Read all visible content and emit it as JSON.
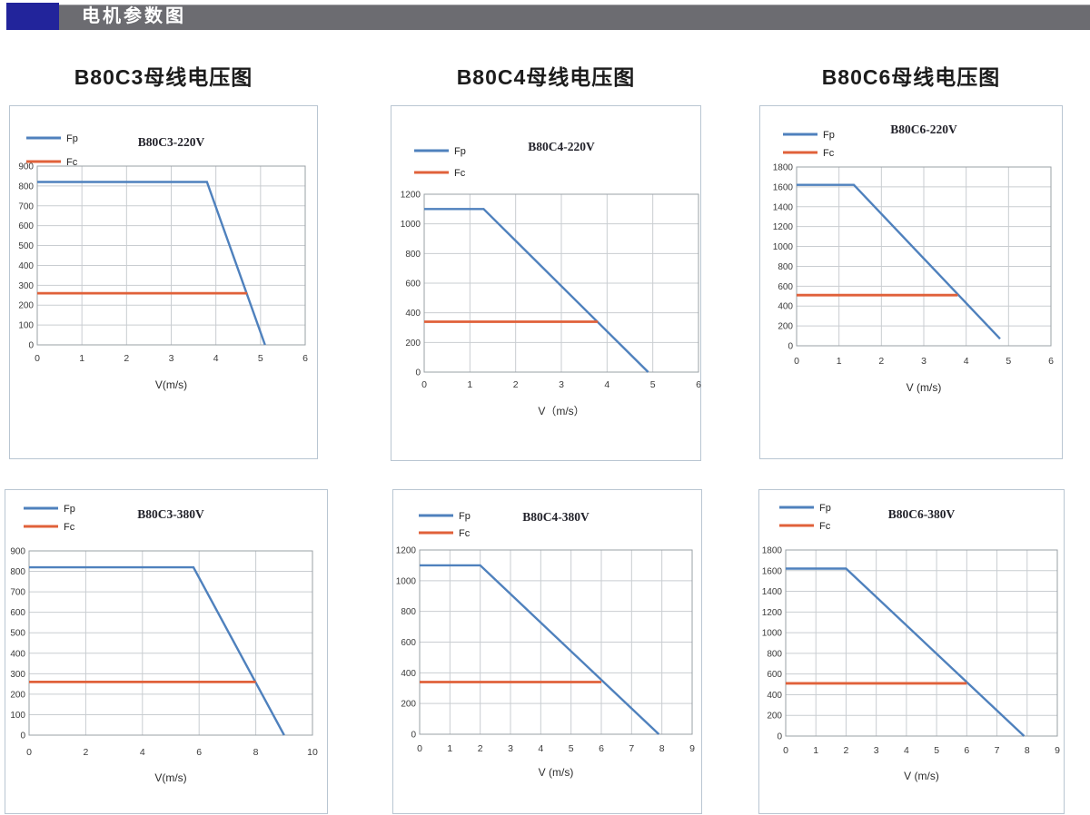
{
  "header": {
    "title": "电机参数图"
  },
  "section_titles": [
    "B80C3母线电压图",
    "B80C4母线电压图",
    "B80C6母线电压图"
  ],
  "colors": {
    "fp": "#4f81bd",
    "fc": "#e0613a",
    "grid": "#c9cdd1",
    "axis": "#9aa0a6",
    "panel_border": "#b9c6d2",
    "header_bar": "#6c6c71",
    "header_accent": "#22249b"
  },
  "chart_data": [
    {
      "type": "line",
      "title": "B80C3-220V",
      "xlabel": "V(m/s)",
      "xlim": [
        0,
        6
      ],
      "ylim": [
        0,
        900
      ],
      "xticks": [
        0,
        1,
        2,
        3,
        4,
        5,
        6
      ],
      "yticks": [
        0,
        100,
        200,
        300,
        400,
        500,
        600,
        700,
        800,
        900
      ],
      "legend": [
        "Fp",
        "Fc"
      ],
      "series": [
        {
          "name": "Fp",
          "color": "#4f81bd",
          "points": [
            [
              0,
              820
            ],
            [
              3.8,
              820
            ],
            [
              5.1,
              0
            ]
          ]
        },
        {
          "name": "Fc",
          "color": "#e0613a",
          "points": [
            [
              0,
              260
            ],
            [
              4.7,
              260
            ]
          ]
        }
      ]
    },
    {
      "type": "line",
      "title": "B80C4-220V",
      "xlabel": "V（m/s）",
      "xlim": [
        0,
        6
      ],
      "ylim": [
        0,
        1200
      ],
      "xticks": [
        0,
        1,
        2,
        3,
        4,
        5,
        6
      ],
      "yticks": [
        0,
        200,
        400,
        600,
        800,
        1000,
        1200
      ],
      "legend": [
        "Fp",
        "Fc"
      ],
      "series": [
        {
          "name": "Fp",
          "color": "#4f81bd",
          "points": [
            [
              0,
              1100
            ],
            [
              1.3,
              1100
            ],
            [
              4.9,
              0
            ]
          ]
        },
        {
          "name": "Fc",
          "color": "#e0613a",
          "points": [
            [
              0,
              340
            ],
            [
              3.8,
              340
            ]
          ]
        }
      ]
    },
    {
      "type": "line",
      "title": "B80C6-220V",
      "xlabel": "V (m/s)",
      "xlim": [
        0,
        6
      ],
      "ylim": [
        0,
        1800
      ],
      "xticks": [
        0,
        1,
        2,
        3,
        4,
        5,
        6
      ],
      "yticks": [
        0,
        200,
        400,
        600,
        800,
        1000,
        1200,
        1400,
        1600,
        1800
      ],
      "legend": [
        "Fp",
        "Fc"
      ],
      "series": [
        {
          "name": "Fp",
          "color": "#4f81bd",
          "points": [
            [
              0,
              1620
            ],
            [
              1.35,
              1620
            ],
            [
              4.8,
              70
            ]
          ]
        },
        {
          "name": "Fc",
          "color": "#e0613a",
          "points": [
            [
              0,
              510
            ],
            [
              3.8,
              510
            ]
          ]
        }
      ]
    },
    {
      "type": "line",
      "title": "B80C3-380V",
      "xlabel": "V(m/s)",
      "xlim": [
        0,
        10
      ],
      "ylim": [
        0,
        900
      ],
      "xticks": [
        0,
        2,
        4,
        6,
        8,
        10
      ],
      "yticks": [
        0,
        100,
        200,
        300,
        400,
        500,
        600,
        700,
        800,
        900
      ],
      "legend": [
        "Fp",
        "Fc"
      ],
      "series": [
        {
          "name": "Fp",
          "color": "#4f81bd",
          "points": [
            [
              0,
              820
            ],
            [
              5.8,
              820
            ],
            [
              9,
              0
            ]
          ]
        },
        {
          "name": "Fc",
          "color": "#e0613a",
          "points": [
            [
              0,
              260
            ],
            [
              8,
              260
            ]
          ]
        }
      ]
    },
    {
      "type": "line",
      "title": "B80C4-380V",
      "xlabel": "V (m/s)",
      "xlim": [
        0,
        9
      ],
      "ylim": [
        0,
        1200
      ],
      "xticks": [
        0,
        1,
        2,
        3,
        4,
        5,
        6,
        7,
        8,
        9
      ],
      "yticks": [
        0,
        200,
        400,
        600,
        800,
        1000,
        1200
      ],
      "legend": [
        "Fp",
        "Fc"
      ],
      "series": [
        {
          "name": "Fp",
          "color": "#4f81bd",
          "points": [
            [
              0,
              1100
            ],
            [
              2,
              1100
            ],
            [
              7.9,
              0
            ]
          ]
        },
        {
          "name": "Fc",
          "color": "#e0613a",
          "points": [
            [
              0,
              340
            ],
            [
              6,
              340
            ]
          ]
        }
      ]
    },
    {
      "type": "line",
      "title": "B80C6-380V",
      "xlabel": "V (m/s)",
      "xlim": [
        0,
        9
      ],
      "ylim": [
        0,
        1800
      ],
      "xticks": [
        0,
        1,
        2,
        3,
        4,
        5,
        6,
        7,
        8,
        9
      ],
      "yticks": [
        0,
        200,
        400,
        600,
        800,
        1000,
        1200,
        1400,
        1600,
        1800
      ],
      "legend": [
        "Fp",
        "Fc"
      ],
      "series": [
        {
          "name": "Fp",
          "color": "#4f81bd",
          "points": [
            [
              0,
              1620
            ],
            [
              2,
              1620
            ],
            [
              7.9,
              0
            ]
          ]
        },
        {
          "name": "Fc",
          "color": "#e0613a",
          "points": [
            [
              0,
              510
            ],
            [
              6,
              510
            ]
          ]
        }
      ]
    }
  ]
}
